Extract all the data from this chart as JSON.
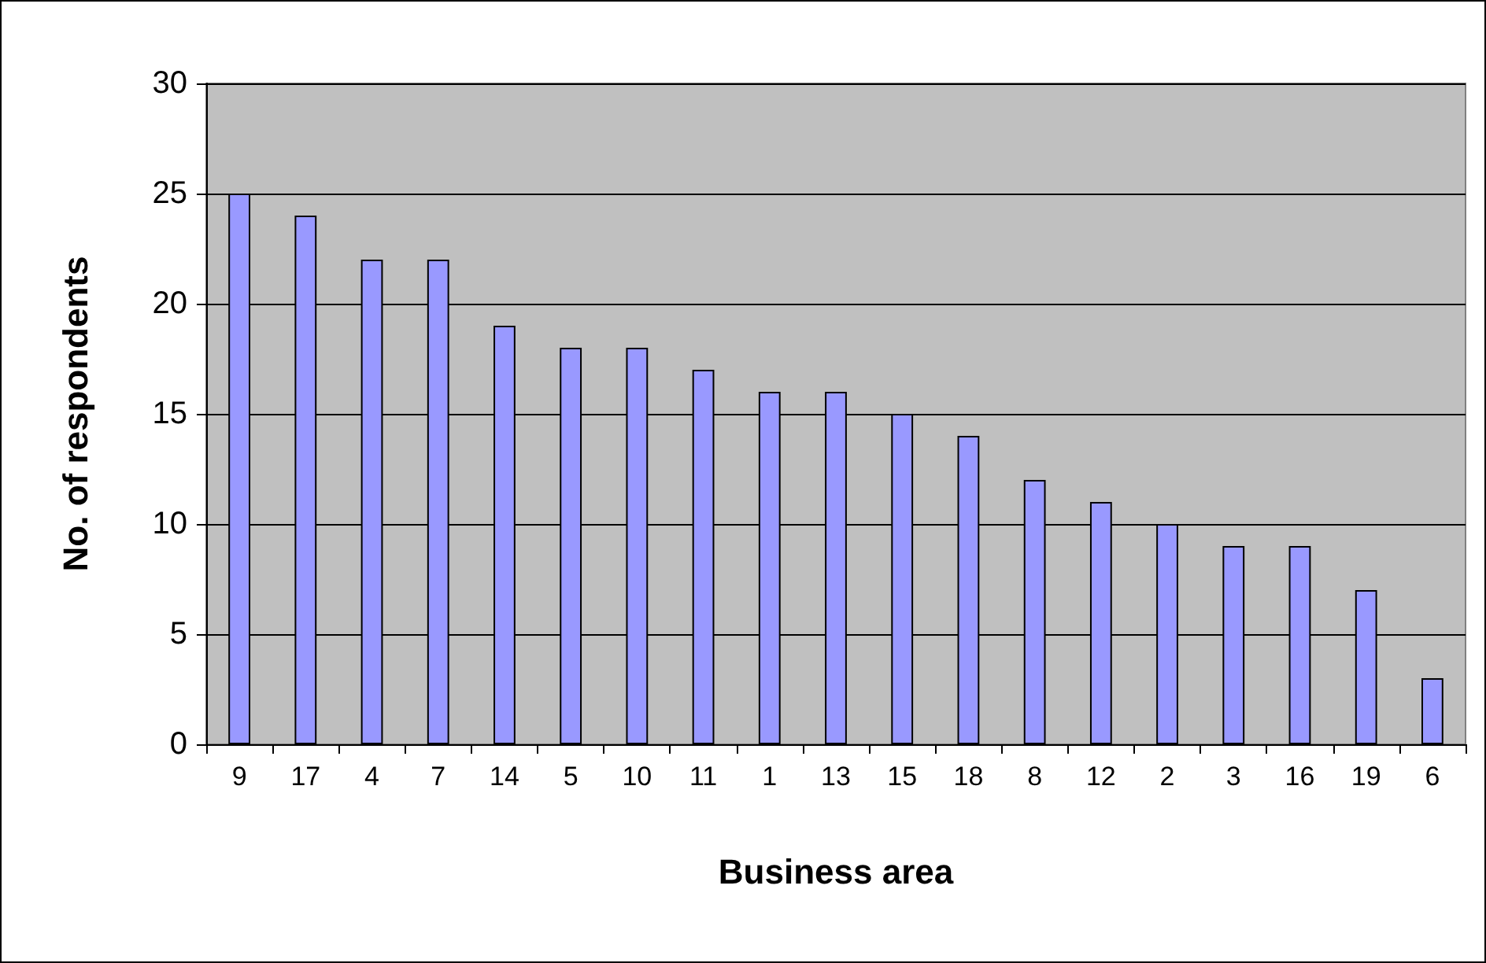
{
  "chart_data": {
    "type": "bar",
    "xlabel": "Business area",
    "ylabel": "No. of respondents",
    "categories": [
      "9",
      "17",
      "4",
      "7",
      "14",
      "5",
      "10",
      "11",
      "1",
      "13",
      "15",
      "18",
      "8",
      "12",
      "2",
      "3",
      "16",
      "19",
      "6"
    ],
    "values": [
      25,
      24,
      22,
      22,
      19,
      18,
      18,
      17,
      16,
      16,
      15,
      14,
      12,
      11,
      10,
      9,
      9,
      7,
      3
    ],
    "color": "#9999ff",
    "ylim": [
      0,
      30
    ],
    "yticks": [
      0,
      5,
      10,
      15,
      20,
      25,
      30
    ],
    "grid": "y"
  }
}
